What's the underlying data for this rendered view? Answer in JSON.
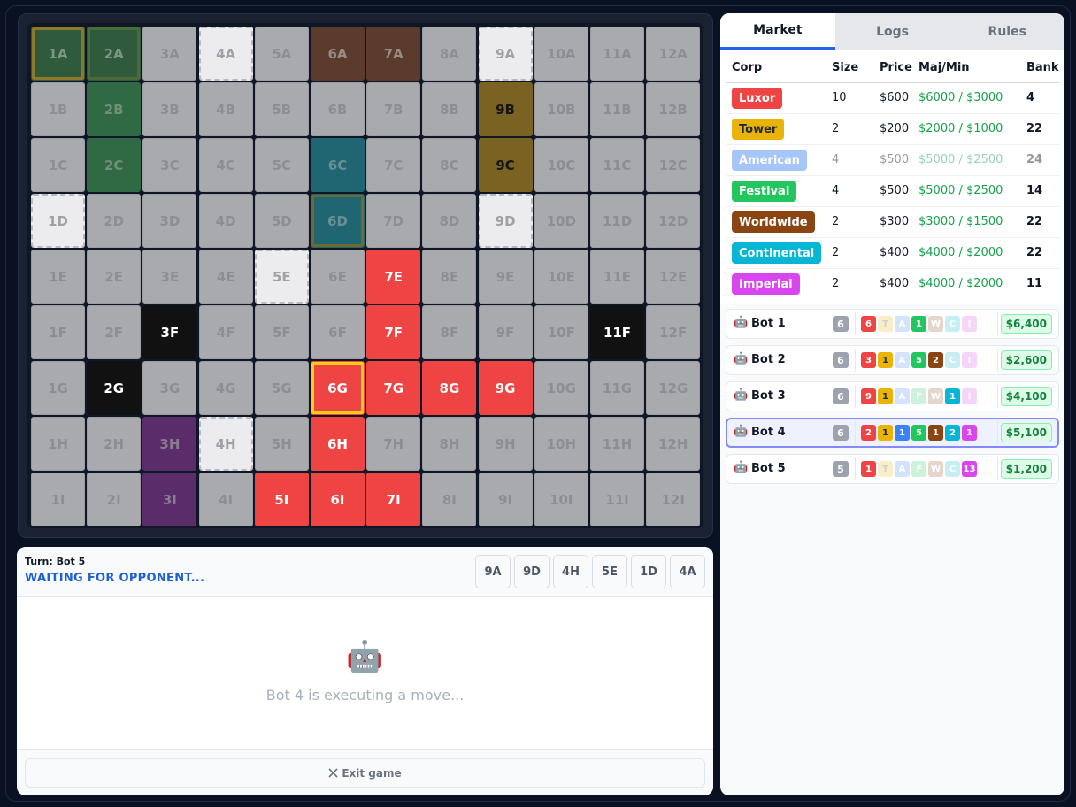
{
  "board": {
    "rows": [
      [
        {
          "label": "1A",
          "fill": "#2f5a3c",
          "ink": "#7d9784",
          "outline": "#8a7a2a"
        },
        {
          "label": "2A",
          "fill": "#2f5a3c",
          "ink": "#7d9784",
          "outline": "#4d6a3a"
        },
        {
          "label": "3A"
        },
        {
          "label": "4A",
          "fill": "#ececef",
          "ink": "#a0a0a8",
          "dashed": true
        },
        {
          "label": "5A"
        },
        {
          "label": "6A",
          "fill": "#5a3b2c",
          "ink": "#9a8a84"
        },
        {
          "label": "7A",
          "fill": "#5a3b2c",
          "ink": "#9a8a84"
        },
        {
          "label": "8A"
        },
        {
          "label": "9A",
          "fill": "#ececef",
          "ink": "#a0a0a8",
          "dashed": true
        },
        {
          "label": "10A"
        },
        {
          "label": "11A"
        },
        {
          "label": "12A"
        }
      ],
      [
        {
          "label": "1B"
        },
        {
          "label": "2B",
          "fill": "#2f6a44",
          "ink": "#6f8f78"
        },
        {
          "label": "3B"
        },
        {
          "label": "4B"
        },
        {
          "label": "5B"
        },
        {
          "label": "6B"
        },
        {
          "label": "7B"
        },
        {
          "label": "8B"
        },
        {
          "label": "9B",
          "fill": "#7a6322",
          "ink": "#151515"
        },
        {
          "label": "10B"
        },
        {
          "label": "11B"
        },
        {
          "label": "12B"
        }
      ],
      [
        {
          "label": "1C"
        },
        {
          "label": "2C",
          "fill": "#2f6a44",
          "ink": "#6f8f78"
        },
        {
          "label": "3C"
        },
        {
          "label": "4C"
        },
        {
          "label": "5C"
        },
        {
          "label": "6C",
          "fill": "#1f6572",
          "ink": "#6a8e96"
        },
        {
          "label": "7C"
        },
        {
          "label": "8C"
        },
        {
          "label": "9C",
          "fill": "#7a6322",
          "ink": "#151515"
        },
        {
          "label": "10C"
        },
        {
          "label": "11C"
        },
        {
          "label": "12C"
        }
      ],
      [
        {
          "label": "1D",
          "fill": "#ececef",
          "ink": "#a0a0a8",
          "dashed": true
        },
        {
          "label": "2D"
        },
        {
          "label": "3D"
        },
        {
          "label": "4D"
        },
        {
          "label": "5D"
        },
        {
          "label": "6D",
          "fill": "#1f6572",
          "ink": "#6a8e96",
          "outline": "#6e6a30"
        },
        {
          "label": "7D"
        },
        {
          "label": "8D"
        },
        {
          "label": "9D",
          "fill": "#ececef",
          "ink": "#a0a0a8",
          "dashed": true
        },
        {
          "label": "10D"
        },
        {
          "label": "11D"
        },
        {
          "label": "12D"
        }
      ],
      [
        {
          "label": "1E"
        },
        {
          "label": "2E"
        },
        {
          "label": "3E"
        },
        {
          "label": "4E"
        },
        {
          "label": "5E",
          "fill": "#ececef",
          "ink": "#a0a0a8",
          "dashed": true
        },
        {
          "label": "6E"
        },
        {
          "label": "7E",
          "fill": "#ef4444",
          "ink": "#ffffff"
        },
        {
          "label": "8E"
        },
        {
          "label": "9E"
        },
        {
          "label": "10E"
        },
        {
          "label": "11E"
        },
        {
          "label": "12E"
        }
      ],
      [
        {
          "label": "1F"
        },
        {
          "label": "2F"
        },
        {
          "label": "3F",
          "fill": "#111111",
          "ink": "#ffffff"
        },
        {
          "label": "4F"
        },
        {
          "label": "5F"
        },
        {
          "label": "6F"
        },
        {
          "label": "7F",
          "fill": "#ef4444",
          "ink": "#ffffff"
        },
        {
          "label": "8F"
        },
        {
          "label": "9F"
        },
        {
          "label": "10F"
        },
        {
          "label": "11F",
          "fill": "#111111",
          "ink": "#ffffff"
        },
        {
          "label": "12F"
        }
      ],
      [
        {
          "label": "1G"
        },
        {
          "label": "2G",
          "fill": "#111111",
          "ink": "#ffffff"
        },
        {
          "label": "3G"
        },
        {
          "label": "4G"
        },
        {
          "label": "5G"
        },
        {
          "label": "6G",
          "fill": "#ef4444",
          "ink": "#ffffff",
          "outline": "#facc15"
        },
        {
          "label": "7G",
          "fill": "#ef4444",
          "ink": "#ffffff"
        },
        {
          "label": "8G",
          "fill": "#ef4444",
          "ink": "#ffffff"
        },
        {
          "label": "9G",
          "fill": "#ef4444",
          "ink": "#ffffff"
        },
        {
          "label": "10G"
        },
        {
          "label": "11G"
        },
        {
          "label": "12G"
        }
      ],
      [
        {
          "label": "1H"
        },
        {
          "label": "2H"
        },
        {
          "label": "3H",
          "fill": "#5b2c6a",
          "ink": "#8a7a92"
        },
        {
          "label": "4H",
          "fill": "#ececef",
          "ink": "#a0a0a8",
          "dashed": true
        },
        {
          "label": "5H"
        },
        {
          "label": "6H",
          "fill": "#ef4444",
          "ink": "#ffffff"
        },
        {
          "label": "7H"
        },
        {
          "label": "8H"
        },
        {
          "label": "9H"
        },
        {
          "label": "10H"
        },
        {
          "label": "11H"
        },
        {
          "label": "12H"
        }
      ],
      [
        {
          "label": "1I"
        },
        {
          "label": "2I"
        },
        {
          "label": "3I",
          "fill": "#5b2c6a",
          "ink": "#8a7a92"
        },
        {
          "label": "4I"
        },
        {
          "label": "5I",
          "fill": "#ef4444",
          "ink": "#ffffff"
        },
        {
          "label": "6I",
          "fill": "#ef4444",
          "ink": "#ffffff"
        },
        {
          "label": "7I",
          "fill": "#ef4444",
          "ink": "#ffffff"
        },
        {
          "label": "8I"
        },
        {
          "label": "9I"
        },
        {
          "label": "10I"
        },
        {
          "label": "11I"
        },
        {
          "label": "12I"
        }
      ]
    ]
  },
  "turn": {
    "label": "Turn: Bot 5",
    "status": "WAITING FOR OPPONENT..."
  },
  "hand": [
    "9A",
    "9D",
    "4H",
    "5E",
    "1D",
    "4A"
  ],
  "activity": {
    "icon": "🤖",
    "message": "Bot 4 is executing a move..."
  },
  "exit_button": "Exit game",
  "tabs": [
    {
      "label": "Market",
      "active": true
    },
    {
      "label": "Logs"
    },
    {
      "label": "Rules"
    }
  ],
  "market": {
    "headers": [
      "Corp",
      "Size",
      "Price",
      "Maj/Min",
      "Bank"
    ],
    "rows": [
      {
        "corp": "Luxor",
        "color": "#ef4444",
        "ink": "#ffffff",
        "size": "10",
        "price": "$600",
        "maj_min": "$6000 / $3000",
        "bank": "4"
      },
      {
        "corp": "Tower",
        "color": "#eab308",
        "ink": "#1f2937",
        "size": "2",
        "price": "$200",
        "maj_min": "$2000 / $1000",
        "bank": "22"
      },
      {
        "corp": "American",
        "color": "#3b82f6",
        "ink": "#ffffff",
        "size": "4",
        "price": "$500",
        "maj_min": "$5000 / $2500",
        "bank": "24",
        "faded": true
      },
      {
        "corp": "Festival",
        "color": "#22c55e",
        "ink": "#ffffff",
        "size": "4",
        "price": "$500",
        "maj_min": "$5000 / $2500",
        "bank": "14"
      },
      {
        "corp": "Worldwide",
        "color": "#8b4513",
        "ink": "#ffffff",
        "size": "2",
        "price": "$300",
        "maj_min": "$3000 / $1500",
        "bank": "22"
      },
      {
        "corp": "Continental",
        "color": "#06b6d4",
        "ink": "#ffffff",
        "size": "2",
        "price": "$400",
        "maj_min": "$4000 / $2000",
        "bank": "22"
      },
      {
        "corp": "Imperial",
        "color": "#d946ef",
        "ink": "#ffffff",
        "size": "2",
        "price": "$400",
        "maj_min": "$4000 / $2000",
        "bank": "11"
      }
    ]
  },
  "players": [
    {
      "icon": "🤖",
      "name": "Bot 1",
      "tiles": "6",
      "stocks": [
        "6",
        "T",
        "A",
        "1",
        "W",
        "C",
        "I"
      ],
      "cash": "$6,400"
    },
    {
      "icon": "🤖",
      "name": "Bot 2",
      "tiles": "6",
      "stocks": [
        "3",
        "1",
        "A",
        "5",
        "2",
        "C",
        "I"
      ],
      "cash": "$2,600"
    },
    {
      "icon": "🤖",
      "name": "Bot 3",
      "tiles": "6",
      "stocks": [
        "9",
        "1",
        "A",
        "F",
        "W",
        "1",
        "I"
      ],
      "cash": "$4,100"
    },
    {
      "icon": "🤖",
      "name": "Bot 4",
      "tiles": "6",
      "stocks": [
        "2",
        "1",
        "1",
        "5",
        "1",
        "2",
        "1"
      ],
      "cash": "$5,100",
      "selected": true
    },
    {
      "icon": "🤖",
      "name": "Bot 5",
      "tiles": "5",
      "stocks": [
        "1",
        "T",
        "A",
        "F",
        "W",
        "C",
        "13"
      ],
      "cash": "$1,200"
    }
  ]
}
